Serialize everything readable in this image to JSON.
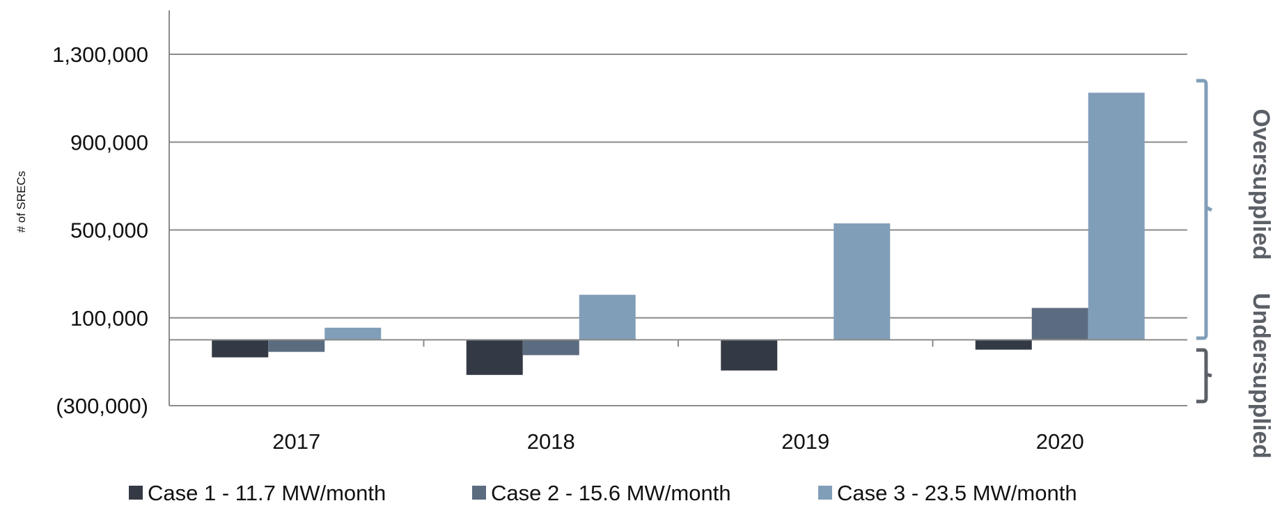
{
  "chart_data": {
    "type": "bar",
    "ylabel": "# of SRECs",
    "xlabel": "",
    "ylim": [
      -300000,
      1500000
    ],
    "yticks": [
      -300000,
      100000,
      500000,
      900000,
      1300000
    ],
    "ytick_labels": [
      "(300,000)",
      "100,000",
      "500,000",
      "900,000",
      "1,300,000"
    ],
    "categories": [
      "2017",
      "2018",
      "2019",
      "2020"
    ],
    "series": [
      {
        "name": "Case 1 - 11.7 MW/month",
        "color": "#343a45",
        "values": [
          -80000,
          -160000,
          -140000,
          -45000
        ]
      },
      {
        "name": "Case 2 - 15.6 MW/month",
        "color": "#5c6c80",
        "values": [
          -55000,
          -70000,
          0,
          145000
        ]
      },
      {
        "name": "Case 3 - 23.5 MW/month",
        "color": "#819eb9",
        "values": [
          55000,
          205000,
          530000,
          1125000
        ]
      }
    ],
    "grid": true,
    "legend_position": "bottom",
    "annotations": [
      {
        "text": "Oversupplied",
        "color": "#819eb9"
      },
      {
        "text": "Undersupplied",
        "color": "#5b5f66"
      }
    ]
  }
}
